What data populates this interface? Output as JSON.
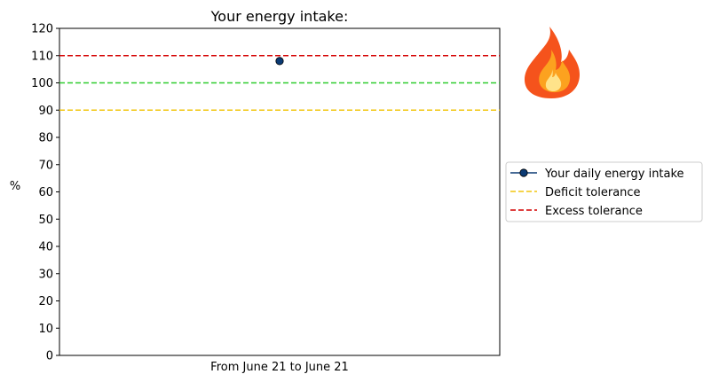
{
  "chart_data": {
    "type": "line",
    "title": "Your energy intake:",
    "xlabel": "From June 21 to June 21",
    "ylabel": "%",
    "ylim": [
      0,
      120
    ],
    "yticks": [
      0,
      10,
      20,
      30,
      40,
      50,
      60,
      70,
      80,
      90,
      100,
      110,
      120
    ],
    "x": [
      "June 21"
    ],
    "series": [
      {
        "name": "Your daily energy intake",
        "values": [
          108
        ],
        "color": "#0b3a73",
        "marker": "circle",
        "line": "solid"
      }
    ],
    "reference_lines": [
      {
        "name": "Deficit tolerance",
        "value": 90,
        "color": "#f2c60f",
        "style": "dashed",
        "in_legend": true
      },
      {
        "name": "",
        "value": 100,
        "color": "#2ecc2e",
        "style": "dashed",
        "in_legend": false
      },
      {
        "name": "Excess tolerance",
        "value": 110,
        "color": "#d40000",
        "style": "dashed",
        "in_legend": true
      }
    ],
    "grid": false,
    "legend_position": "right",
    "status_icon": "fire-icon"
  }
}
